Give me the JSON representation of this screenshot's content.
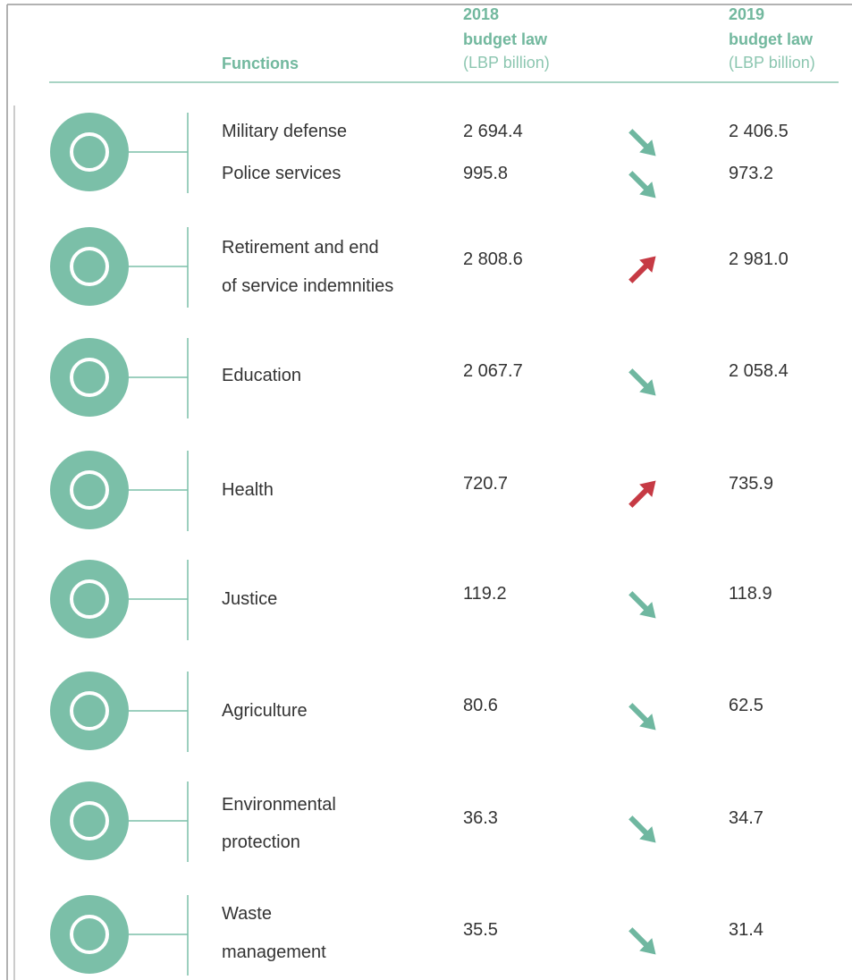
{
  "header": {
    "functions": "Functions",
    "col2018": {
      "year": "2018",
      "title": "budget law",
      "unit": "(LBP billion)"
    },
    "col2019": {
      "year": "2019",
      "title": "budget law",
      "unit": "(LBP billion)"
    }
  },
  "groups": [
    {
      "rows": [
        {
          "function": [
            "Military defense"
          ],
          "v2018": "2 694.4",
          "v2019": "2 406.5"
        },
        {
          "function": [
            "Police services"
          ],
          "v2018": "995.8",
          "v2019": "973.2"
        }
      ]
    },
    {
      "rows": [
        {
          "function": [
            "Retirement and end",
            "of service indemnities"
          ],
          "v2018": "2 808.6",
          "v2019": "2 981.0"
        }
      ]
    },
    {
      "rows": [
        {
          "function": [
            "Education"
          ],
          "v2018": "2 067.7",
          "v2019": "2 058.4"
        }
      ]
    },
    {
      "rows": [
        {
          "function": [
            "Health"
          ],
          "v2018": "720.7",
          "v2019": "735.9"
        }
      ]
    },
    {
      "rows": [
        {
          "function": [
            "Justice"
          ],
          "v2018": "119.2",
          "v2019": "118.9"
        }
      ]
    },
    {
      "rows": [
        {
          "function": [
            "Agriculture"
          ],
          "v2018": "80.6",
          "v2019": "62.5"
        }
      ]
    },
    {
      "rows": [
        {
          "function": [
            "Environmental",
            "protection"
          ],
          "v2018": "36.3",
          "v2019": "34.7"
        }
      ]
    },
    {
      "rows": [
        {
          "function": [
            "Waste",
            "management"
          ],
          "v2018": "35.5",
          "v2019": "31.4"
        }
      ]
    }
  ]
}
